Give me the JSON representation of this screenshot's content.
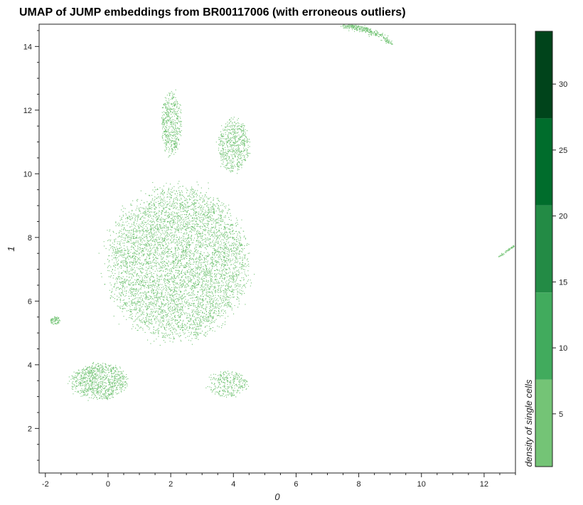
{
  "chart_data": {
    "type": "scatter",
    "title": "UMAP of JUMP embeddings from BR00117006 (with erroneous outliers)",
    "xlabel": "0",
    "ylabel": "1",
    "xlim": [
      -2.2,
      13.0
    ],
    "ylim": [
      0.6,
      14.7
    ],
    "x_ticks": [
      -2,
      0,
      2,
      4,
      6,
      8,
      10,
      12
    ],
    "y_ticks": [
      2,
      4,
      6,
      8,
      10,
      12,
      14
    ],
    "point_color": "#74c476",
    "grid": false,
    "clusters": [
      {
        "id": "main-blob",
        "center": [
          2.2,
          7.2
        ],
        "spread": [
          1.35,
          1.45
        ],
        "count": 14000
      },
      {
        "id": "lower-left-lobe",
        "center": [
          -0.3,
          3.5
        ],
        "spread": [
          0.55,
          0.35
        ],
        "count": 900
      },
      {
        "id": "upper-spike",
        "center": [
          2.0,
          11.6
        ],
        "spread": [
          0.2,
          0.6
        ],
        "count": 500
      },
      {
        "id": "upper-right-arm",
        "center": [
          4.0,
          10.9
        ],
        "spread": [
          0.3,
          0.5
        ],
        "count": 600
      },
      {
        "id": "lower-right-tail",
        "center": [
          3.8,
          3.4
        ],
        "spread": [
          0.4,
          0.25
        ],
        "count": 300
      },
      {
        "id": "top-arc-outliers",
        "center": [
          8.3,
          14.5
        ],
        "spread": [
          0.5,
          0.12
        ],
        "count": 350
      },
      {
        "id": "far-right-outliers",
        "center": [
          12.7,
          7.5
        ],
        "spread": [
          0.15,
          0.1
        ],
        "count": 60
      },
      {
        "id": "small-left-cluster",
        "center": [
          -1.7,
          5.4
        ],
        "spread": [
          0.1,
          0.08
        ],
        "count": 80
      }
    ],
    "colorbar": {
      "label": "density of single cells",
      "range": [
        1,
        34
      ],
      "ticks": [
        5,
        10,
        15,
        20,
        25,
        30
      ],
      "bins": [
        {
          "from": 1,
          "to": 7.6,
          "color": "#74c476"
        },
        {
          "from": 7.6,
          "to": 14.2,
          "color": "#41ab5d"
        },
        {
          "from": 14.2,
          "to": 20.8,
          "color": "#238b45"
        },
        {
          "from": 20.8,
          "to": 27.4,
          "color": "#006d2c"
        },
        {
          "from": 27.4,
          "to": 34,
          "color": "#00441b"
        }
      ]
    }
  }
}
